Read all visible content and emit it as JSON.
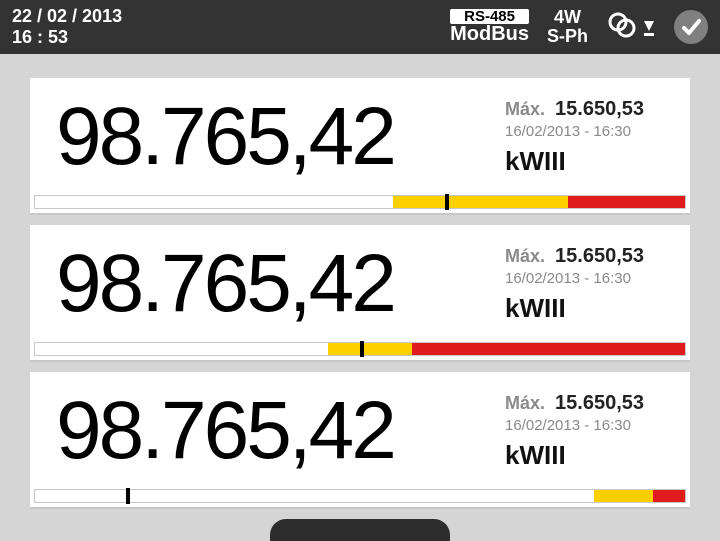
{
  "colors": {
    "header_bg": "#333333",
    "body_bg": "#d5d5d5",
    "panel_bg": "#ffffff",
    "text_main": "#000000",
    "text_muted": "#8a8a8a",
    "check_bg": "#808080",
    "bar_white": "#ffffff",
    "bar_yellow": "#ffd000",
    "bar_red": "#e01b1b",
    "bar_border": "#c8c8c8",
    "tab_bg": "#2d2d2d"
  },
  "header": {
    "date": "22 / 02 / 2013",
    "time": "16 : 53",
    "rs485_tag": "RS-485",
    "rs485_proto": "ModBus",
    "wiring_top": "4W",
    "wiring_bottom": "S-Ph"
  },
  "panels": [
    {
      "value": "98.765,42",
      "max_label": "Máx.",
      "max_value": "15.650,53",
      "max_ts": "16/02/2013 - 16:30",
      "unit": "kWIII",
      "bar": {
        "white_pct": 55,
        "yellow_pct": 27,
        "red_pct": 18,
        "marker_pct": 63
      }
    },
    {
      "value": "98.765,42",
      "max_label": "Máx.",
      "max_value": "15.650,53",
      "max_ts": "16/02/2013 - 16:30",
      "unit": "kWIII",
      "bar": {
        "white_pct": 45,
        "yellow_pct": 13,
        "red_pct": 42,
        "marker_pct": 50
      }
    },
    {
      "value": "98.765,42",
      "max_label": "Máx.",
      "max_value": "15.650,53",
      "max_ts": "16/02/2013 - 16:30",
      "unit": "kWIII",
      "bar": {
        "white_pct": 86,
        "yellow_pct": 9,
        "red_pct": 5,
        "marker_pct": 14
      }
    }
  ]
}
